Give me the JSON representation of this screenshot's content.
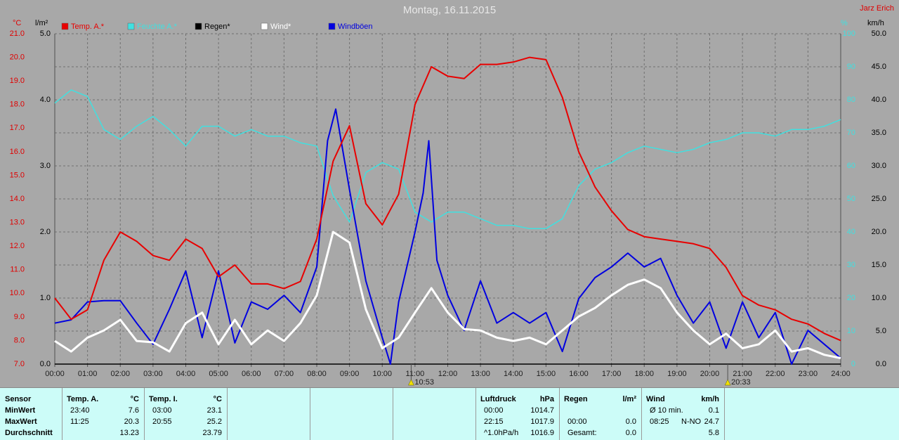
{
  "chart_data": {
    "type": "line",
    "title": "Montag, 16.11.2015",
    "author": "Jarz Erich",
    "y_label": "°C",
    "y2_label": "l/m²",
    "y3_label": "%",
    "y4_label": "km/h",
    "xlim": [
      0,
      24
    ],
    "xticks": [
      {
        "value": 0,
        "label": "00:00"
      },
      {
        "value": 1,
        "label": "01:00"
      },
      {
        "value": 2,
        "label": "02:00"
      },
      {
        "value": 3,
        "label": "03:00"
      },
      {
        "value": 4,
        "label": "04:00"
      },
      {
        "value": 5,
        "label": "05:00"
      },
      {
        "value": 6,
        "label": "06:00"
      },
      {
        "value": 7,
        "label": "07:00"
      },
      {
        "value": 8,
        "label": "08:00"
      },
      {
        "value": 9,
        "label": "09:00"
      },
      {
        "value": 10,
        "label": "10:00"
      },
      {
        "value": 11,
        "label": "11:00"
      },
      {
        "value": 12,
        "label": "12:00"
      },
      {
        "value": 13,
        "label": "13:00"
      },
      {
        "value": 14,
        "label": "14:00"
      },
      {
        "value": 15,
        "label": "15:00"
      },
      {
        "value": 16,
        "label": "16:00"
      },
      {
        "value": 17,
        "label": "17:00"
      },
      {
        "value": 18,
        "label": "18:00"
      },
      {
        "value": 19,
        "label": "19:00"
      },
      {
        "value": 20,
        "label": "20:00"
      },
      {
        "value": 21,
        "label": "21:00"
      },
      {
        "value": 22,
        "label": "22:00"
      },
      {
        "value": 23,
        "label": "23:00"
      },
      {
        "value": 24,
        "label": "24:00"
      }
    ],
    "ylim": [
      7,
      21
    ],
    "yticks": [
      {
        "value": 7,
        "label": "7.0"
      },
      {
        "value": 8,
        "label": "8.0"
      },
      {
        "value": 9,
        "label": "9.0"
      },
      {
        "value": 10,
        "label": "10.0"
      },
      {
        "value": 11,
        "label": "11.0"
      },
      {
        "value": 12,
        "label": "12.0"
      },
      {
        "value": 13,
        "label": "13.0"
      },
      {
        "value": 14,
        "label": "14.0"
      },
      {
        "value": 15,
        "label": "15.0"
      },
      {
        "value": 16,
        "label": "16.0"
      },
      {
        "value": 17,
        "label": "17.0"
      },
      {
        "value": 18,
        "label": "18.0"
      },
      {
        "value": 19,
        "label": "19.0"
      },
      {
        "value": 20,
        "label": "20.0"
      },
      {
        "value": 21,
        "label": "21.0"
      }
    ],
    "y2lim": [
      0,
      5
    ],
    "y2ticks": [
      {
        "value": 0,
        "label": "0.0"
      },
      {
        "value": 1,
        "label": "1.0"
      },
      {
        "value": 2,
        "label": "2.0"
      },
      {
        "value": 3,
        "label": "3.0"
      },
      {
        "value": 4,
        "label": "4.0"
      },
      {
        "value": 5,
        "label": "5.0"
      }
    ],
    "y3lim": [
      0,
      100
    ],
    "y3ticks": [
      0,
      10,
      20,
      30,
      40,
      50,
      60,
      70,
      80,
      90,
      100
    ],
    "y4lim": [
      0,
      50
    ],
    "y4ticks": [
      {
        "value": 0,
        "label": "0.0"
      },
      {
        "value": 5,
        "label": "5.0"
      },
      {
        "value": 10,
        "label": "10.0"
      },
      {
        "value": 15,
        "label": "15.0"
      },
      {
        "value": 20,
        "label": "20.0"
      },
      {
        "value": 25,
        "label": "25.0"
      },
      {
        "value": 30,
        "label": "30.0"
      },
      {
        "value": 35,
        "label": "35.0"
      },
      {
        "value": 40,
        "label": "40.0"
      },
      {
        "value": 45,
        "label": "45.0"
      },
      {
        "value": 50,
        "label": "50.0"
      }
    ],
    "grid": true,
    "series": [
      {
        "name": "Temp. A.*",
        "color": "#e80000",
        "axis": "y",
        "x": [
          0,
          0.5,
          1,
          1.5,
          2,
          2.5,
          3,
          3.5,
          4,
          4.5,
          5,
          5.5,
          6,
          6.5,
          7,
          7.5,
          8,
          8.5,
          9,
          9.5,
          10,
          10.5,
          11,
          11.5,
          12,
          12.5,
          13,
          13.5,
          14,
          14.5,
          15,
          15.5,
          16,
          16.5,
          17,
          17.5,
          18,
          18.5,
          19,
          19.5,
          20,
          20.5,
          21,
          21.5,
          22,
          22.5,
          23,
          23.5,
          24
        ],
        "values": [
          9.8,
          8.9,
          9.3,
          11.4,
          12.6,
          12.2,
          11.6,
          11.4,
          12.3,
          11.9,
          10.7,
          11.2,
          10.4,
          10.4,
          10.2,
          10.5,
          12.3,
          15.6,
          17.1,
          13.8,
          12.9,
          14.2,
          18.0,
          19.6,
          19.2,
          19.1,
          19.7,
          19.7,
          19.8,
          20.0,
          19.9,
          18.3,
          16.0,
          14.5,
          13.5,
          12.7,
          12.4,
          12.3,
          12.2,
          12.1,
          11.9,
          11.1,
          9.9,
          9.5,
          9.3,
          8.9,
          8.7,
          8.3,
          8.0
        ]
      },
      {
        "name": "Feuchte A.*",
        "color": "#40e0e0",
        "axis": "y3",
        "x": [
          0,
          0.5,
          1,
          1.5,
          2,
          2.5,
          3,
          3.5,
          4,
          4.5,
          5,
          5.5,
          6,
          6.5,
          7,
          7.5,
          8,
          8.5,
          9,
          9.5,
          10,
          10.5,
          11,
          11.5,
          12,
          12.5,
          13,
          13.5,
          14,
          14.5,
          15,
          15.5,
          16,
          16.5,
          17,
          17.5,
          18,
          18.5,
          19,
          19.5,
          20,
          20.5,
          21,
          21.5,
          22,
          22.5,
          23,
          23.5,
          24
        ],
        "values": [
          79,
          83,
          81,
          71,
          68,
          72,
          75,
          71,
          66,
          72,
          72,
          69,
          71,
          69,
          69,
          67,
          66,
          51,
          43,
          58,
          61,
          59,
          46,
          43,
          46,
          46,
          44,
          42,
          42,
          41,
          41,
          44,
          54,
          59,
          61,
          64,
          66,
          65,
          64,
          65,
          67,
          68,
          70,
          70,
          69,
          71,
          71,
          72,
          74
        ]
      },
      {
        "name": "Regen*",
        "color": "#000000",
        "axis": "y2",
        "x": [
          0,
          24
        ],
        "values": [
          0,
          0
        ]
      },
      {
        "name": "Wind*",
        "color": "#ffffff",
        "axis": "y4",
        "x": [
          0,
          0.5,
          1,
          1.5,
          2,
          2.5,
          3,
          3.5,
          4,
          4.5,
          5,
          5.5,
          6,
          6.5,
          7,
          7.5,
          8,
          8.5,
          9,
          9.5,
          10,
          10.5,
          11,
          11.5,
          12,
          12.5,
          13,
          13.5,
          14,
          14.5,
          15,
          15.5,
          16,
          16.5,
          17,
          17.5,
          18,
          18.5,
          19,
          19.5,
          20,
          20.5,
          21,
          21.5,
          22,
          22.5,
          23,
          23.5,
          24
        ],
        "values": [
          3.5,
          1.9,
          4.0,
          5.1,
          6.7,
          3.5,
          3.3,
          1.9,
          6.2,
          7.8,
          3.0,
          6.7,
          3.0,
          5.1,
          3.5,
          6.2,
          10.4,
          20.0,
          18.4,
          8.3,
          2.4,
          4.0,
          7.8,
          11.5,
          7.8,
          5.3,
          5.1,
          4.0,
          3.5,
          4.0,
          3.0,
          5.1,
          7.2,
          8.5,
          10.4,
          12.0,
          12.8,
          11.5,
          7.8,
          5.1,
          3.0,
          4.6,
          2.4,
          3.0,
          5.1,
          1.9,
          2.4,
          1.4,
          0.9
        ]
      },
      {
        "name": "Windböen",
        "color": "#0000e0",
        "axis": "y4",
        "x": [
          0,
          0.5,
          1,
          1.5,
          2,
          2.5,
          3,
          3.5,
          4,
          4.5,
          5,
          5.5,
          6,
          6.5,
          7,
          7.5,
          8,
          8.33,
          8.58,
          9,
          9.5,
          10,
          10.25,
          10.5,
          11,
          11.25,
          11.42,
          11.67,
          12,
          12.5,
          13,
          13.5,
          14,
          14.5,
          15,
          15.5,
          16,
          16.5,
          17,
          17.5,
          18,
          18.5,
          19,
          19.5,
          20,
          20.5,
          21,
          21.5,
          22,
          22.5,
          23,
          23.5,
          24
        ],
        "values": [
          6.2,
          6.7,
          9.4,
          9.6,
          9.6,
          6.2,
          3.0,
          8.3,
          14.1,
          4.0,
          14.1,
          3.2,
          9.4,
          8.3,
          10.4,
          7.8,
          14.7,
          33.8,
          38.6,
          26.4,
          12.6,
          4.0,
          0,
          9.4,
          20.0,
          25.9,
          33.8,
          15.7,
          10.4,
          5.1,
          12.6,
          6.2,
          7.8,
          6.2,
          7.8,
          1.9,
          9.9,
          13.1,
          14.7,
          16.8,
          14.7,
          16.0,
          10.4,
          6.2,
          9.4,
          2.4,
          9.4,
          4.0,
          7.8,
          0,
          5.1,
          3.0,
          0.9
        ]
      }
    ],
    "annotations": [
      {
        "x": 10.883,
        "label": "10:53"
      },
      {
        "x": 20.55,
        "label": "20:33"
      }
    ]
  },
  "stats_table": {
    "row_labels": {
      "header": "Sensor",
      "rows": [
        "MinWert",
        "MaxWert",
        "Durchschnitt"
      ]
    },
    "columns": [
      {
        "header": "Temp. A.",
        "unit": "°C",
        "rows": [
          {
            "time": "23:40",
            "value": "7.6"
          },
          {
            "time": "11:25",
            "value": "20.3"
          },
          {
            "value": "13.23"
          }
        ]
      },
      {
        "header": "Temp. I.",
        "unit": "°C",
        "rows": [
          {
            "time": "03:00",
            "value": "23.1"
          },
          {
            "time": "20:55",
            "value": "25.2"
          },
          {
            "value": "23.79"
          }
        ]
      },
      {
        "header": "Luftdruck",
        "unit": "hPa",
        "rows": [
          {
            "time": "00:00",
            "value": "1014.7"
          },
          {
            "time": "22:15",
            "value": "1017.9"
          },
          {
            "time": "^1.0hPa/h",
            "value": "1016.9"
          }
        ]
      },
      {
        "header": "Regen",
        "unit": "l/m²",
        "rows": [
          null,
          {
            "time": "00:00",
            "value": "0.0"
          },
          {
            "time": "Gesamt:",
            "value": "0.0"
          }
        ]
      },
      {
        "header": "Wind",
        "unit": "km/h",
        "rows": [
          {
            "time": "Ø 10 min.",
            "value": "0.1"
          },
          {
            "time": "08:25",
            "dir": "N-NO",
            "value": "24.7"
          },
          {
            "value": "5.8"
          }
        ]
      }
    ]
  }
}
